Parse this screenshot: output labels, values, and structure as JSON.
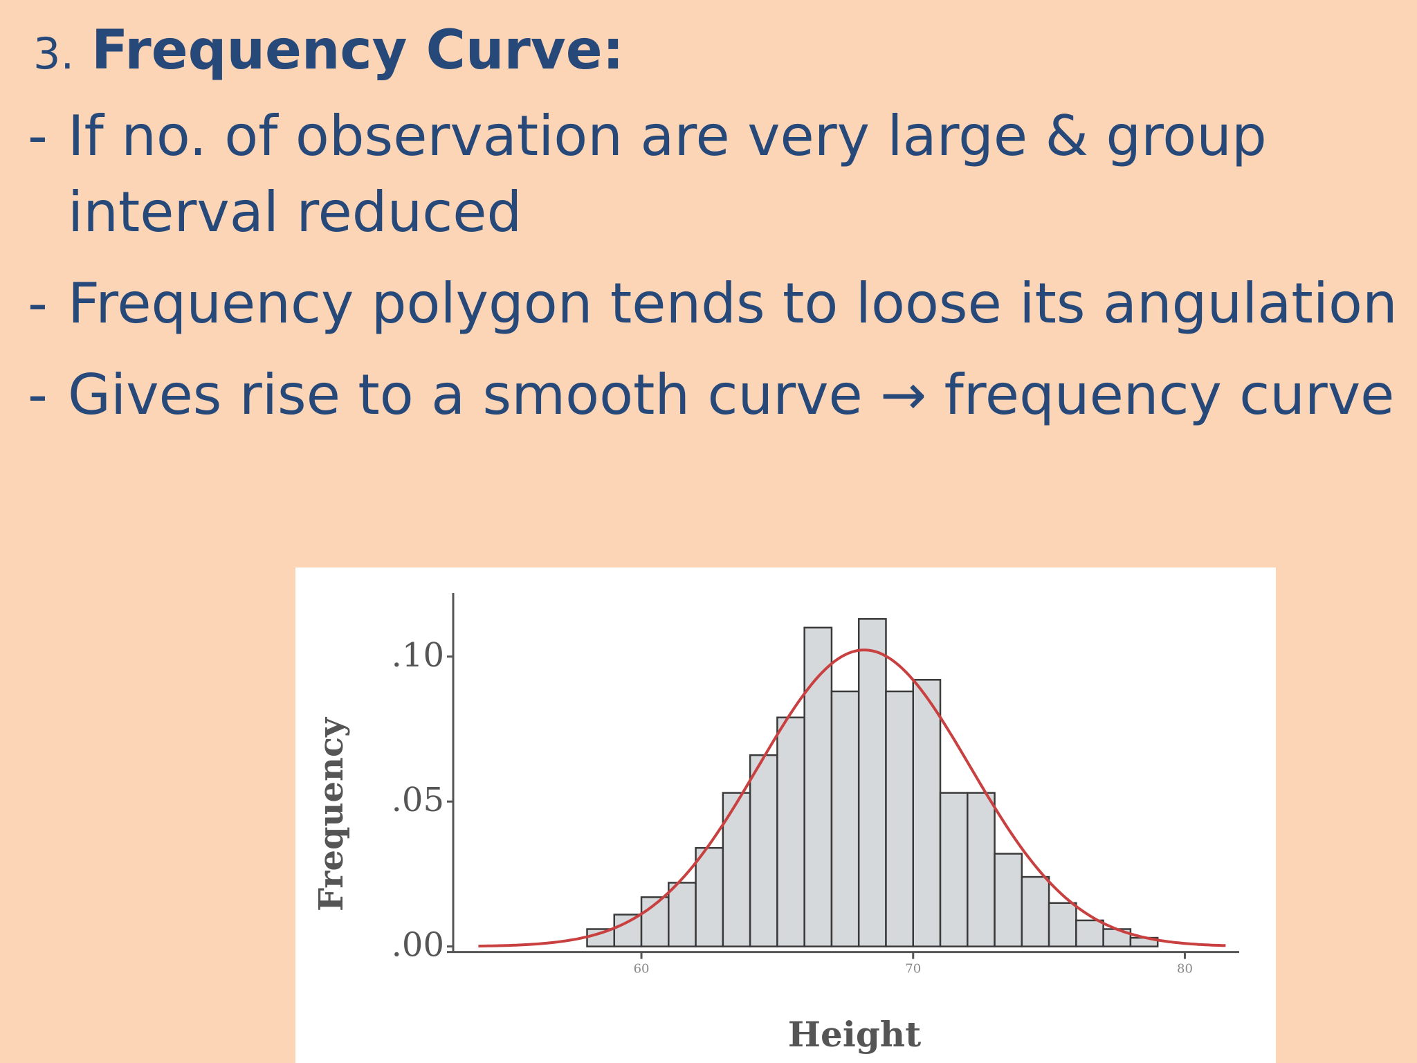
{
  "slide": {
    "number": "3.",
    "title": "Frequency Curve:",
    "bullets": [
      {
        "dash": "-",
        "text": "If no. of observation are very large & group interval reduced"
      },
      {
        "dash": "-",
        "text": "Frequency polygon tends to loose its angulation"
      },
      {
        "dash": "-",
        "text": "Gives rise to a smooth curve → frequency curve"
      }
    ]
  },
  "colors": {
    "background": "#fcd4b6",
    "text": "#27497a",
    "bars": "#d6d9dc",
    "bar_stroke": "#3a3a3a",
    "curve": "#c94040"
  },
  "chart_data": {
    "type": "bar",
    "xlabel": "Height",
    "ylabel": "Frequency",
    "xlim": [
      53.2,
      82
    ],
    "ylim": [
      -0.002,
      0.12
    ],
    "xticks": [
      60,
      70,
      80
    ],
    "xtick_labels": [
      "60",
      "70",
      "80"
    ],
    "yticks": [
      0.0,
      0.05,
      0.1
    ],
    "ytick_labels": [
      ".00",
      ".05",
      ".10"
    ],
    "bin_width": 1,
    "bins": [
      {
        "x0": 58,
        "value": 0.006
      },
      {
        "x0": 59,
        "value": 0.011
      },
      {
        "x0": 60,
        "value": 0.017
      },
      {
        "x0": 61,
        "value": 0.022
      },
      {
        "x0": 62,
        "value": 0.034
      },
      {
        "x0": 63,
        "value": 0.053
      },
      {
        "x0": 64,
        "value": 0.066
      },
      {
        "x0": 65,
        "value": 0.079
      },
      {
        "x0": 66,
        "value": 0.11
      },
      {
        "x0": 67,
        "value": 0.088
      },
      {
        "x0": 68,
        "value": 0.113
      },
      {
        "x0": 69,
        "value": 0.088
      },
      {
        "x0": 70,
        "value": 0.092
      },
      {
        "x0": 71,
        "value": 0.053
      },
      {
        "x0": 72,
        "value": 0.053
      },
      {
        "x0": 73,
        "value": 0.032
      },
      {
        "x0": 74,
        "value": 0.024
      },
      {
        "x0": 75,
        "value": 0.015
      },
      {
        "x0": 76,
        "value": 0.009
      },
      {
        "x0": 77,
        "value": 0.006
      },
      {
        "x0": 78,
        "value": 0.003
      }
    ],
    "curve": {
      "type": "normal",
      "mean": 68.2,
      "sd": 3.9,
      "x_range": [
        54,
        81.5
      ]
    }
  }
}
